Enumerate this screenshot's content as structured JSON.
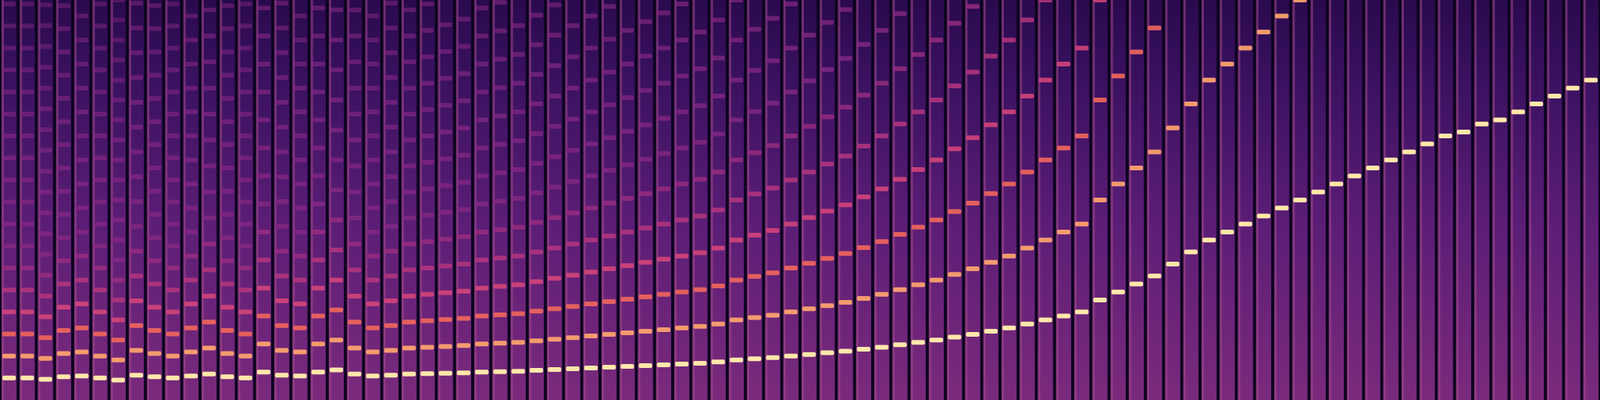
{
  "chart_data": {
    "type": "spectrogram",
    "tick_labels": false,
    "grid": false,
    "xlim": [
      0,
      88
    ],
    "ylim": [
      0,
      1
    ],
    "values": [
      0.055,
      0.055,
      0.052,
      0.058,
      0.06,
      0.055,
      0.05,
      0.062,
      0.058,
      0.055,
      0.06,
      0.065,
      0.058,
      0.055,
      0.07,
      0.062,
      0.06,
      0.07,
      0.075,
      0.065,
      0.06,
      0.062,
      0.065,
      0.066,
      0.067,
      0.068,
      0.07,
      0.071,
      0.072,
      0.074,
      0.076,
      0.078,
      0.08,
      0.082,
      0.084,
      0.086,
      0.088,
      0.09,
      0.092,
      0.095,
      0.1,
      0.103,
      0.106,
      0.11,
      0.114,
      0.118,
      0.122,
      0.127,
      0.132,
      0.138,
      0.144,
      0.15,
      0.157,
      0.164,
      0.172,
      0.18,
      0.19,
      0.2,
      0.21,
      0.22,
      0.25,
      0.27,
      0.29,
      0.31,
      0.34,
      0.37,
      0.4,
      0.42,
      0.44,
      0.46,
      0.48,
      0.5,
      0.52,
      0.54,
      0.56,
      0.58,
      0.6,
      0.62,
      0.64,
      0.66,
      0.67,
      0.69,
      0.7,
      0.72,
      0.74,
      0.76,
      0.78,
      0.8
    ]
  }
}
